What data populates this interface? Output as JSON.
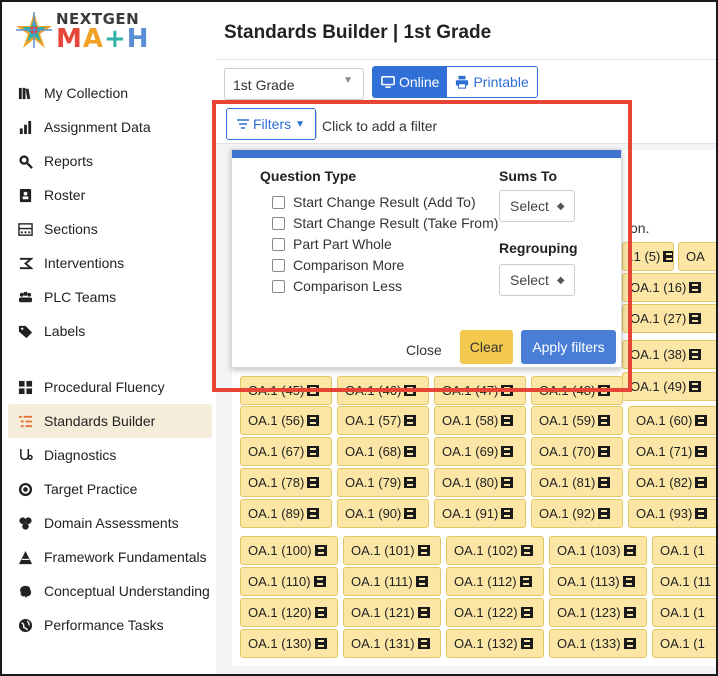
{
  "logo": {
    "top": "NEXTGEN",
    "bottom": [
      "M",
      "A",
      "+",
      "H"
    ]
  },
  "sidebar": {
    "items": [
      {
        "label": "My Collection",
        "icon": "books-icon"
      },
      {
        "label": "Assignment Data",
        "icon": "bar-chart-icon"
      },
      {
        "label": "Reports",
        "icon": "magnifier-icon"
      },
      {
        "label": "Roster",
        "icon": "address-book-icon"
      },
      {
        "label": "Sections",
        "icon": "sections-icon"
      },
      {
        "label": "Interventions",
        "icon": "interventions-icon"
      },
      {
        "label": "PLC Teams",
        "icon": "people-icon"
      },
      {
        "label": "Labels",
        "icon": "tag-icon"
      },
      {
        "label": "Procedural Fluency",
        "icon": "grid-icon"
      },
      {
        "label": "Standards Builder",
        "icon": "list-tree-icon",
        "active": true
      },
      {
        "label": "Diagnostics",
        "icon": "diagnostics-icon"
      },
      {
        "label": "Target Practice",
        "icon": "target-icon"
      },
      {
        "label": "Domain Assessments",
        "icon": "domains-icon"
      },
      {
        "label": "Framework Fundamentals",
        "icon": "pyramid-icon"
      },
      {
        "label": "Conceptual Understanding",
        "icon": "brain-icon"
      },
      {
        "label": "Performance Tasks",
        "icon": "globe-icon"
      }
    ]
  },
  "header": {
    "title": "Standards Builder | 1st Grade"
  },
  "toolbar": {
    "grade": "1st Grade",
    "online_label": "Online",
    "printable_label": "Printable"
  },
  "filters": {
    "button_label": "Filters",
    "hint": "Click to add a filter"
  },
  "popover": {
    "question_type_heading": "Question Type",
    "options": [
      "Start Change Result (Add To)",
      "Start Change Result (Take From)",
      "Part Part Whole",
      "Comparison More",
      "Comparison Less"
    ],
    "sums_to_heading": "Sums To",
    "sums_to_value": "Select",
    "regrouping_heading": "Regrouping",
    "regrouping_value": "Select",
    "close_label": "Close",
    "clear_label": "Clear",
    "apply_label": "Apply filters"
  },
  "background_fragments": {
    "text": "on.",
    "tags_right": [
      ".1 (5)",
      "OA",
      "OA.1 (16)",
      "OA.1 (27)",
      "OA.1 (38)",
      "OA.1 (49)"
    ]
  },
  "tags": [
    [
      "OA.1 (45)",
      "OA.1 (46)",
      "OA.1 (47)",
      "OA.1 (48)"
    ],
    [
      "OA.1 (56)",
      "OA.1 (57)",
      "OA.1 (58)",
      "OA.1 (59)",
      "OA.1 (60)"
    ],
    [
      "OA.1 (67)",
      "OA.1 (68)",
      "OA.1 (69)",
      "OA.1 (70)",
      "OA.1 (71)"
    ],
    [
      "OA.1 (78)",
      "OA.1 (79)",
      "OA.1 (80)",
      "OA.1 (81)",
      "OA.1 (82)"
    ],
    [
      "OA.1 (89)",
      "OA.1 (90)",
      "OA.1 (91)",
      "OA.1 (92)",
      "OA.1 (93)"
    ],
    [
      "OA.1 (100)",
      "OA.1 (101)",
      "OA.1 (102)",
      "OA.1 (103)",
      "OA.1 (1"
    ],
    [
      "OA.1 (110)",
      "OA.1 (111)",
      "OA.1 (112)",
      "OA.1 (113)",
      "OA.1 (11"
    ],
    [
      "OA.1 (120)",
      "OA.1 (121)",
      "OA.1 (122)",
      "OA.1 (123)",
      "OA.1 (1"
    ],
    [
      "OA.1 (130)",
      "OA.1 (131)",
      "OA.1 (132)",
      "OA.1 (133)",
      "OA.1 (1"
    ]
  ],
  "colors": {
    "accent": "#2f6fd6",
    "tag_bg": "#fbe6a5",
    "highlight": "#e64536",
    "active_nav": "#f5ecd9"
  }
}
